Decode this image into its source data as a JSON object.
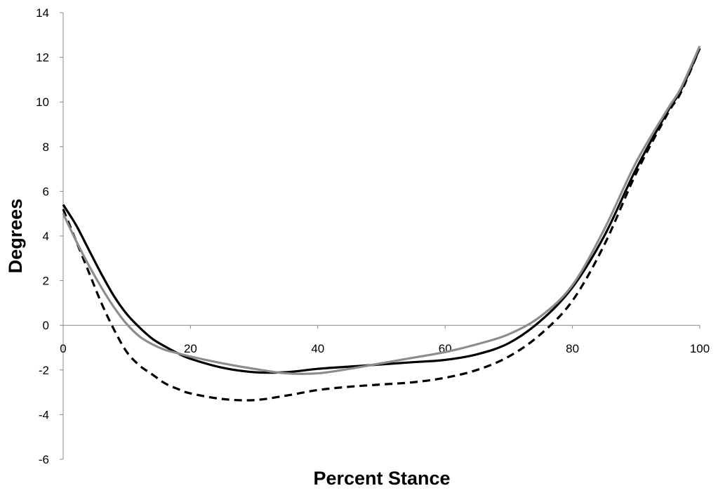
{
  "chart_data": {
    "type": "line",
    "title": "",
    "xlabel": "Percent Stance",
    "ylabel": "Degrees",
    "xlim": [
      0,
      100
    ],
    "ylim": [
      -6,
      14
    ],
    "xticks": [
      0,
      20,
      40,
      60,
      80,
      100
    ],
    "yticks": [
      -6,
      -4,
      -2,
      0,
      2,
      4,
      6,
      8,
      10,
      12,
      14
    ],
    "grid": false,
    "legend": "none",
    "series": [
      {
        "color": "#000000",
        "style": "solid",
        "x": [
          0,
          2,
          4,
          6,
          8,
          10,
          12,
          14,
          16,
          18,
          20,
          25,
          30,
          35,
          40,
          45,
          50,
          55,
          60,
          65,
          70,
          75,
          80,
          85,
          90,
          95,
          97,
          100
        ],
        "y": [
          5.4,
          4.5,
          3.4,
          2.3,
          1.3,
          0.5,
          -0.1,
          -0.6,
          -0.95,
          -1.25,
          -1.5,
          -1.9,
          -2.1,
          -2.1,
          -1.95,
          -1.85,
          -1.75,
          -1.65,
          -1.55,
          -1.3,
          -0.8,
          0.2,
          1.7,
          4.0,
          7.0,
          9.6,
          10.5,
          12.4
        ]
      },
      {
        "color": "#000000",
        "style": "dashed",
        "x": [
          0,
          2,
          4,
          6,
          8,
          10,
          12,
          14,
          16,
          18,
          20,
          25,
          30,
          35,
          40,
          45,
          50,
          55,
          60,
          65,
          70,
          75,
          80,
          85,
          90,
          95,
          97,
          100
        ],
        "y": [
          5.2,
          3.8,
          2.4,
          1.0,
          -0.2,
          -1.2,
          -1.8,
          -2.2,
          -2.6,
          -2.85,
          -3.05,
          -3.3,
          -3.35,
          -3.15,
          -2.9,
          -2.75,
          -2.65,
          -2.55,
          -2.35,
          -2.0,
          -1.4,
          -0.4,
          1.1,
          3.6,
          6.8,
          9.5,
          10.4,
          12.4
        ]
      },
      {
        "color": "#8c8c8c",
        "style": "solid",
        "x": [
          0,
          2,
          4,
          6,
          8,
          10,
          12,
          14,
          16,
          18,
          20,
          25,
          30,
          35,
          40,
          45,
          50,
          55,
          60,
          65,
          70,
          75,
          80,
          85,
          90,
          95,
          97,
          100
        ],
        "y": [
          5.0,
          3.8,
          2.7,
          1.7,
          0.8,
          0.05,
          -0.5,
          -0.85,
          -1.1,
          -1.25,
          -1.4,
          -1.7,
          -1.95,
          -2.15,
          -2.15,
          -1.95,
          -1.7,
          -1.45,
          -1.2,
          -0.85,
          -0.4,
          0.4,
          1.8,
          4.3,
          7.3,
          9.7,
          10.6,
          12.5
        ]
      }
    ]
  }
}
